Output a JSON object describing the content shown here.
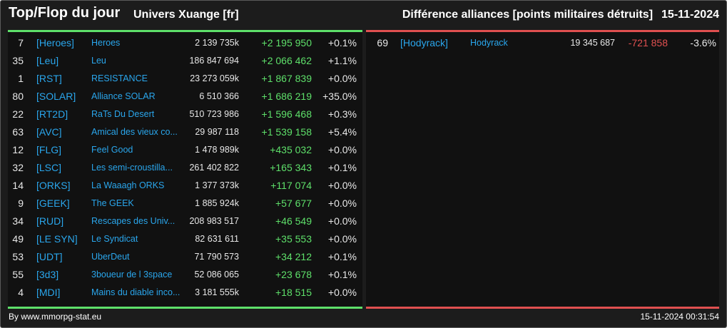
{
  "header": {
    "title": "Top/Flop du jour",
    "subtitle": "Univers Xuange [fr]",
    "metric": "Différence alliances [points militaires détruits]",
    "date": "15-11-2024"
  },
  "colors": {
    "positive": "#5ee06a",
    "negative": "#e05050",
    "link": "#2aa6ec",
    "background": "#1c1c1c",
    "panel": "#111111"
  },
  "top": {
    "rows": [
      {
        "rank": "7",
        "tag": "[Heroes]",
        "name": "Heroes",
        "points": "2 139 735k",
        "diff": "+2 195 950",
        "pct": "+0.1%"
      },
      {
        "rank": "35",
        "tag": "[Leu]",
        "name": "Leu",
        "points": "186 847 694",
        "diff": "+2 066 462",
        "pct": "+1.1%"
      },
      {
        "rank": "1",
        "tag": "[RST]",
        "name": "RESISTANCE",
        "points": "23 273 059k",
        "diff": "+1 867 839",
        "pct": "+0.0%"
      },
      {
        "rank": "80",
        "tag": "[SOLAR]",
        "name": "Alliance SOLAR",
        "points": "6 510 366",
        "diff": "+1 686 219",
        "pct": "+35.0%"
      },
      {
        "rank": "22",
        "tag": "[RT2D]",
        "name": "RaTs Du Desert",
        "points": "510 723 986",
        "diff": "+1 596 468",
        "pct": "+0.3%"
      },
      {
        "rank": "63",
        "tag": "[AVC]",
        "name": "Amical des vieux co...",
        "points": "29 987 118",
        "diff": "+1 539 158",
        "pct": "+5.4%"
      },
      {
        "rank": "12",
        "tag": "[FLG]",
        "name": "Feel Good",
        "points": "1 478 989k",
        "diff": "+435 032",
        "pct": "+0.0%"
      },
      {
        "rank": "32",
        "tag": "[LSC]",
        "name": "Les semi-croustilla...",
        "points": "261 402 822",
        "diff": "+165 343",
        "pct": "+0.1%"
      },
      {
        "rank": "14",
        "tag": "[ORKS]",
        "name": "La Waaagh ORKS",
        "points": "1 377 373k",
        "diff": "+117 074",
        "pct": "+0.0%"
      },
      {
        "rank": "9",
        "tag": "[GEEK]",
        "name": "The GEEK",
        "points": "1 885 924k",
        "diff": "+57 677",
        "pct": "+0.0%"
      },
      {
        "rank": "34",
        "tag": "[RUD]",
        "name": "Rescapes des Univ...",
        "points": "208 983 517",
        "diff": "+46 549",
        "pct": "+0.0%"
      },
      {
        "rank": "49",
        "tag": "[LE SYN]",
        "name": "Le Syndicat",
        "points": "82 631 611",
        "diff": "+35 553",
        "pct": "+0.0%"
      },
      {
        "rank": "53",
        "tag": "[UDT]",
        "name": "UberDeut",
        "points": "71 790 573",
        "diff": "+34 212",
        "pct": "+0.1%"
      },
      {
        "rank": "55",
        "tag": "[3d3]",
        "name": "3boueur de l 3space",
        "points": "52 086 065",
        "diff": "+23 678",
        "pct": "+0.1%"
      },
      {
        "rank": "4",
        "tag": "[MDI]",
        "name": "Mains du diable inco...",
        "points": "3 181 555k",
        "diff": "+18 515",
        "pct": "+0.0%"
      }
    ]
  },
  "flop": {
    "rows": [
      {
        "rank": "69",
        "tag": "[Hodyrack]",
        "name": "Hodyrack",
        "points": "19 345 687",
        "diff": "-721 858",
        "pct": "-3.6%"
      }
    ]
  },
  "footer": {
    "source": "By www.mmorpg-stat.eu",
    "timestamp": "15-11-2024 00:31:54"
  }
}
